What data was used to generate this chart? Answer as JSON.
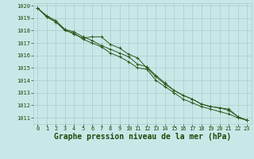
{
  "x": [
    0,
    1,
    2,
    3,
    4,
    5,
    6,
    7,
    8,
    9,
    10,
    11,
    12,
    13,
    14,
    15,
    16,
    17,
    18,
    19,
    20,
    21,
    22,
    23
  ],
  "line1": [
    1019.8,
    1019.1,
    1018.7,
    1018.1,
    1017.7,
    1017.4,
    1017.5,
    1017.5,
    1016.9,
    1016.6,
    1016.1,
    1015.8,
    1015.0,
    1014.3,
    1013.7,
    1013.2,
    1012.8,
    1012.5,
    1012.1,
    1011.9,
    1011.8,
    1011.7,
    1011.1,
    1010.8
  ],
  "line2": [
    1019.8,
    1019.2,
    1018.8,
    1018.1,
    1017.9,
    1017.5,
    1017.2,
    1016.8,
    1016.5,
    1016.2,
    1015.9,
    1015.3,
    1015.1,
    1014.4,
    1013.8,
    1013.2,
    1012.8,
    1012.5,
    1012.1,
    1011.9,
    1011.8,
    1011.6,
    1011.1,
    1010.8
  ],
  "line3": [
    1019.8,
    1019.1,
    1018.7,
    1018.0,
    1017.8,
    1017.3,
    1017.0,
    1016.7,
    1016.2,
    1015.9,
    1015.5,
    1015.0,
    1014.9,
    1014.0,
    1013.5,
    1013.0,
    1012.5,
    1012.2,
    1011.9,
    1011.7,
    1011.5,
    1011.3,
    1011.0,
    1010.8
  ],
  "ylim": [
    1011,
    1020
  ],
  "xlim": [
    -0.5,
    23.5
  ],
  "yticks": [
    1011,
    1012,
    1013,
    1014,
    1015,
    1016,
    1017,
    1018,
    1019,
    1020
  ],
  "xticks": [
    0,
    1,
    2,
    3,
    4,
    5,
    6,
    7,
    8,
    9,
    10,
    11,
    12,
    13,
    14,
    15,
    16,
    17,
    18,
    19,
    20,
    21,
    22,
    23
  ],
  "line_color": "#2d5a1b",
  "marker": "+",
  "background_color": "#c8e8e8",
  "grid_color": "#aacccc",
  "xlabel": "Graphe pression niveau de la mer (hPa)",
  "xlabel_color": "#1a4a0a",
  "tick_label_color": "#1a4a0a",
  "xlabel_fontsize": 7,
  "tick_fontsize": 5
}
